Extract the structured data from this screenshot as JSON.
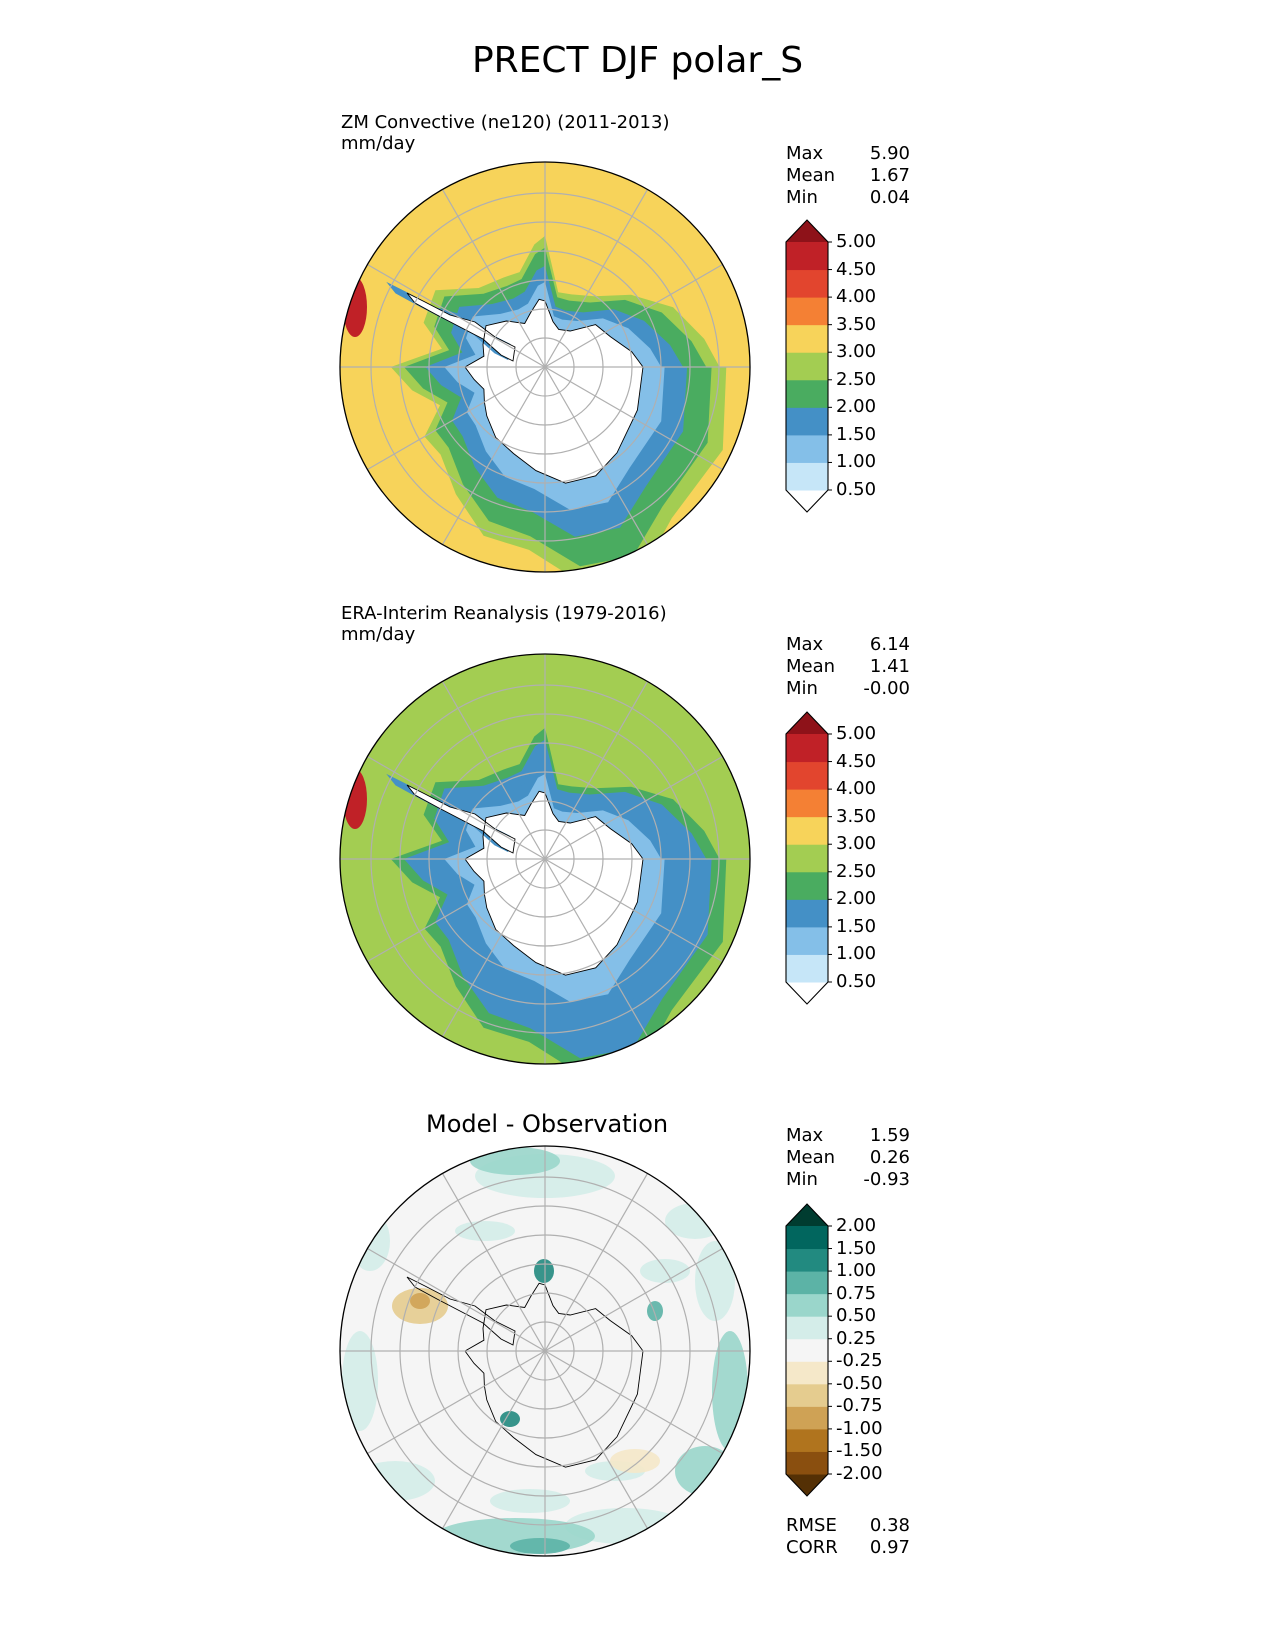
{
  "figure": {
    "title": "PRECT DJF polar_S"
  },
  "chart_data": [
    {
      "type": "heatmap",
      "projection": "south-polar-stereographic",
      "title": "ZM Convective (ne120) (2011-2013)",
      "units": "mm/day",
      "stats": {
        "max": "5.90",
        "mean": "1.67",
        "min": "0.04"
      },
      "stat_labels": {
        "max": "Max",
        "mean": "Mean",
        "min": "Min"
      },
      "levels": [
        "0.50",
        "1.00",
        "1.50",
        "2.00",
        "2.50",
        "3.00",
        "3.50",
        "4.00",
        "4.50",
        "5.00"
      ],
      "colors": [
        "#ffffff",
        "#c6e6f8",
        "#84bfe8",
        "#4490c6",
        "#4aac60",
        "#a3cd52",
        "#f7d35a",
        "#f48034",
        "#e2452e",
        "#c02127",
        "#8e1219"
      ],
      "zones": {
        "coast_mm_day": 0.3,
        "inner_ocean": 1.2,
        "mid_ocean": 1.8,
        "southern_ocean": 2.3,
        "outer_band": 2.8,
        "edge": 3.4
      }
    },
    {
      "type": "heatmap",
      "projection": "south-polar-stereographic",
      "title": "ERA-Interim Reanalysis (1979-2016)",
      "units": "mm/day",
      "stats": {
        "max": "6.14",
        "mean": "1.41",
        "min": "-0.00"
      },
      "stat_labels": {
        "max": "Max",
        "mean": "Mean",
        "min": "Min"
      },
      "levels": [
        "0.50",
        "1.00",
        "1.50",
        "2.00",
        "2.50",
        "3.00",
        "3.50",
        "4.00",
        "4.50",
        "5.00"
      ],
      "colors": [
        "#ffffff",
        "#c6e6f8",
        "#84bfe8",
        "#4490c6",
        "#4aac60",
        "#a3cd52",
        "#f7d35a",
        "#f48034",
        "#e2452e",
        "#c02127",
        "#8e1219"
      ],
      "zones": {
        "coast_mm_day": 0.3,
        "inner_ocean": 1.2,
        "mid_ocean": 1.7,
        "southern_ocean": 1.8,
        "outer_band": 2.2,
        "edge": 2.7
      }
    },
    {
      "type": "heatmap",
      "projection": "south-polar-stereographic",
      "title": "Model - Observation",
      "units": "",
      "stats": {
        "max": "1.59",
        "mean": "0.26",
        "min": "-0.93"
      },
      "stat_labels": {
        "max": "Max",
        "mean": "Mean",
        "min": "Min"
      },
      "levels": [
        "-2.00",
        "-1.50",
        "-1.00",
        "-0.75",
        "-0.50",
        "-0.25",
        "0.25",
        "0.50",
        "0.75",
        "1.00",
        "1.50",
        "2.00"
      ],
      "colors": [
        "#543005",
        "#8a4f0f",
        "#b0741e",
        "#cfa255",
        "#e5cc8f",
        "#f5e8c9",
        "#f5f5f5",
        "#d4ede9",
        "#9ad6cb",
        "#5cb3a6",
        "#228a80",
        "#01665e",
        "#003c30"
      ],
      "metrics": {
        "rmse_label": "RMSE",
        "rmse": "0.38",
        "corr_label": "CORR",
        "corr": "0.97"
      }
    }
  ]
}
